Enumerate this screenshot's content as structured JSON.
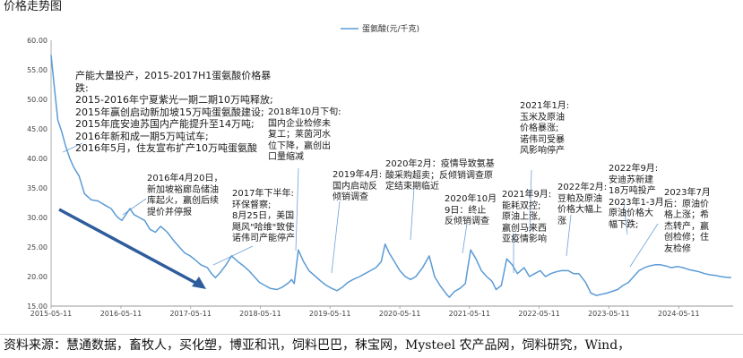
{
  "header_text": "价格走势图",
  "chart_data": {
    "type": "line",
    "title": "",
    "xlabel": "",
    "ylabel": "",
    "ylim": [
      15,
      60
    ],
    "yticks": [
      "15.00",
      "20.00",
      "25.00",
      "30.00",
      "35.00",
      "40.00",
      "45.00",
      "50.00",
      "55.00",
      "60.00"
    ],
    "xticks": [
      "2015-05-11",
      "2016-05-11",
      "2017-05-11",
      "2018-05-11",
      "2019-05-11",
      "2020-05-11",
      "2021-05-11",
      "2022-05-11",
      "2023-05-11",
      "2024-05-11"
    ],
    "legend_position": "top-center",
    "grid": false,
    "series": [
      {
        "name": "蛋氨酸(元/千克)",
        "color": "#5b9bd5",
        "x": [
          "2015-05-11",
          "2015-05-25",
          "2015-06-15",
          "2015-07-06",
          "2015-07-27",
          "2015-08-17",
          "2015-09-07",
          "2015-10-05",
          "2015-11-02",
          "2015-12-07",
          "2016-01-11",
          "2016-02-22",
          "2016-03-21",
          "2016-04-11",
          "2016-04-25",
          "2016-05-16",
          "2016-06-06",
          "2016-06-27",
          "2016-07-18",
          "2016-08-15",
          "2016-09-12",
          "2016-10-10",
          "2016-11-07",
          "2016-12-05",
          "2017-01-09",
          "2017-02-13",
          "2017-03-13",
          "2017-04-10",
          "2017-05-08",
          "2017-06-05",
          "2017-07-03",
          "2017-08-07",
          "2017-08-28",
          "2017-09-18",
          "2017-10-16",
          "2017-11-13",
          "2017-12-11",
          "2018-01-15",
          "2018-02-12",
          "2018-03-12",
          "2018-04-09",
          "2018-05-07",
          "2018-06-04",
          "2018-07-02",
          "2018-08-06",
          "2018-09-03",
          "2018-10-08",
          "2018-10-22",
          "2018-11-05",
          "2018-11-26",
          "2018-12-24",
          "2019-01-21",
          "2019-02-25",
          "2019-03-25",
          "2019-04-22",
          "2019-05-20",
          "2019-06-17",
          "2019-07-15",
          "2019-08-12",
          "2019-09-09",
          "2019-10-14",
          "2019-11-11",
          "2019-12-09",
          "2020-01-06",
          "2020-02-03",
          "2020-02-24",
          "2020-03-16",
          "2020-04-13",
          "2020-05-11",
          "2020-06-08",
          "2020-07-06",
          "2020-08-03",
          "2020-09-07",
          "2020-10-12",
          "2020-11-09",
          "2020-12-07",
          "2021-01-11",
          "2021-01-25",
          "2021-02-22",
          "2021-03-22",
          "2021-04-19",
          "2021-05-17",
          "2021-06-14",
          "2021-07-12",
          "2021-08-09",
          "2021-09-06",
          "2021-09-27",
          "2021-10-25",
          "2021-11-22",
          "2021-12-20",
          "2022-01-17",
          "2022-02-21",
          "2022-03-21",
          "2022-04-18",
          "2022-05-16",
          "2022-06-13",
          "2022-07-11",
          "2022-08-08",
          "2022-09-05",
          "2022-10-10",
          "2022-11-07",
          "2022-12-05",
          "2023-01-09",
          "2023-02-06",
          "2023-03-06",
          "2023-04-03",
          "2023-05-01",
          "2023-05-29",
          "2023-06-26",
          "2023-07-24",
          "2023-08-21",
          "2023-09-18",
          "2023-10-16",
          "2023-11-13",
          "2023-12-11",
          "2024-01-08",
          "2024-02-05",
          "2024-03-04",
          "2024-04-01",
          "2024-05-06",
          "2024-06-03",
          "2024-07-01",
          "2024-07-29",
          "2024-08-26",
          "2024-09-23",
          "2024-10-21",
          "2024-11-18",
          "2024-12-16",
          "2025-01-13",
          "2025-02-10"
        ],
        "values": [
          57.5,
          53.0,
          46.5,
          44.5,
          42.0,
          40.0,
          38.5,
          37.0,
          34.0,
          33.0,
          32.8,
          32.0,
          31.5,
          30.5,
          30.0,
          29.5,
          30.5,
          31.5,
          30.5,
          30.0,
          29.5,
          28.0,
          27.5,
          28.5,
          27.5,
          26.0,
          25.0,
          24.0,
          23.5,
          22.8,
          22.0,
          21.5,
          20.5,
          19.8,
          20.8,
          22.0,
          23.5,
          22.5,
          21.8,
          21.0,
          20.0,
          19.0,
          18.5,
          18.0,
          17.8,
          18.2,
          19.0,
          19.5,
          18.8,
          24.5,
          22.5,
          21.0,
          20.0,
          19.2,
          18.5,
          18.0,
          17.6,
          18.2,
          19.0,
          19.5,
          20.0,
          20.5,
          21.0,
          21.5,
          22.5,
          25.5,
          24.0,
          22.5,
          21.0,
          20.0,
          19.5,
          20.0,
          21.5,
          23.5,
          20.0,
          18.5,
          17.0,
          16.5,
          17.5,
          18.0,
          18.8,
          24.5,
          23.0,
          21.0,
          20.0,
          19.2,
          17.8,
          18.5,
          23.0,
          22.0,
          20.5,
          21.5,
          20.0,
          20.5,
          21.0,
          20.0,
          20.5,
          20.8,
          21.0,
          21.0,
          20.5,
          20.5,
          19.0,
          17.2,
          16.8,
          17.0,
          17.2,
          17.5,
          17.8,
          18.5,
          19.0,
          20.0,
          21.0,
          21.5,
          21.8,
          22.0,
          22.0,
          21.8,
          21.5,
          21.7,
          21.5,
          21.2,
          21.0,
          20.8,
          20.5,
          20.3,
          20.2,
          20.0,
          19.9,
          19.8
        ]
      }
    ]
  },
  "annotations": {
    "a2015": [
      "产能大量投产，2015-2017H1蛋氨酸价格暴",
      "跌:",
      "2015-2016年宁夏紫光一期二期10万吨释放;",
      "2015年赢创启动新加坡15万吨蛋氨酸建设;",
      "2015年底安迪苏国内产能提升至14万吨;",
      "2016年新和成一期5万吨试车;",
      "2016年5月，住友宣布扩产10万吨蛋氨酸"
    ],
    "a2016": [
      "2016年4月20日，",
      "新加坡裕廊岛储油",
      "库起火，赢创后续",
      "提价并停报"
    ],
    "a2017": [
      "2017年下半年:",
      "环保督察;",
      "8月25日，美国",
      "飓风\"哈维\"致使",
      "诺伟司产能停产"
    ],
    "a2018": [
      "2018年10月下旬:",
      "国内企业检修未",
      "复工；莱茵河水",
      "位下降，赢创出",
      "口量缩减"
    ],
    "a2019": [
      "2019年4月:",
      "国内启动反",
      "倾销调查"
    ],
    "a2020a": [
      "2020年2月：疫情导致氨基",
      "酸采购超卖；反倾销调查原",
      "定结束期临近"
    ],
    "a2020b": [
      "2020年10月",
      "9日：终止",
      "反倾销调查"
    ],
    "a2021a": [
      "2021年1月:",
      "玉米及原油",
      "价格暴涨;",
      "诺伟司受暴",
      "风影响停产"
    ],
    "a2021b": [
      "2021年9月:",
      "能耗双控;",
      "原油上涨,",
      "赢创马来西",
      "亚疫情影响"
    ],
    "a2022a": [
      "2022年2月:",
      "豆粕及原油",
      "价格大幅上",
      "涨"
    ],
    "a2022b": [
      "2022年9月:",
      "安迪苏新建",
      "18万吨投产",
      "2023年1-3月:",
      "原油价格大",
      "幅下跌;"
    ],
    "a2023": [
      "2023年7月",
      "后：原油价",
      "格上涨；希",
      "杰转产，赢",
      "创检修；住",
      "友检修"
    ]
  },
  "source_text": "资料来源：慧通数据，畜牧人，买化塑，博亚和讯，饲料巴巴，秣宝网，Mysteel 农产品网，饲料研究，Wind，"
}
